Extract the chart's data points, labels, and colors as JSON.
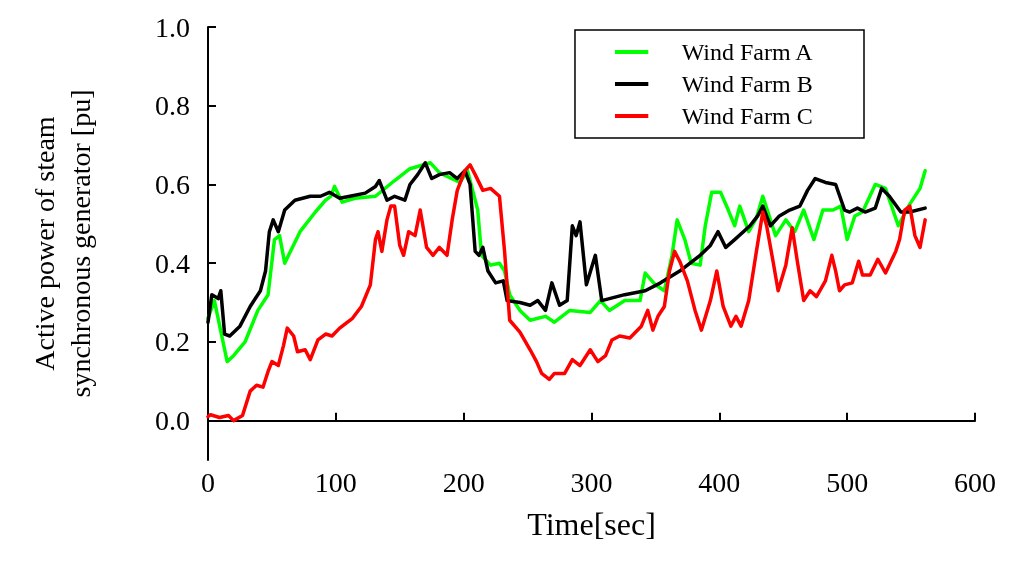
{
  "chart_data": {
    "type": "line",
    "xlabel": "Time[sec]",
    "ylabel": "Active power of steam\nsynchronous generator [pu]",
    "xlim": [
      0,
      600
    ],
    "xticks": [
      0,
      100,
      200,
      300,
      400,
      500,
      600
    ],
    "ylim": [
      -0.1,
      1.0
    ],
    "yticks": [
      {
        "value": 0,
        "label": "0.0"
      },
      {
        "value": 0.2,
        "label": "0.2"
      },
      {
        "value": 0.4,
        "label": "0.4"
      },
      {
        "value": 0.6,
        "label": "0.6"
      },
      {
        "value": 0.8,
        "label": "0.8"
      },
      {
        "value": 1.0,
        "label": "1.0"
      }
    ],
    "legend": "top right",
    "grid": false,
    "marker": "none",
    "line_style": "solid",
    "series": [
      {
        "name": "Wind Farm A",
        "color": "#00ff00",
        "x": [
          0,
          5,
          15,
          20,
          29,
          39,
          47,
          52,
          56,
          60,
          72,
          84,
          92,
          96,
          99,
          105,
          115,
          131,
          146,
          158,
          174,
          181,
          197,
          203,
          211,
          214,
          221,
          228,
          232,
          236,
          244,
          252,
          264,
          271,
          283,
          299,
          307,
          314,
          326,
          338,
          342,
          350,
          357,
          363,
          367,
          373,
          378,
          385,
          389,
          394,
          401,
          407,
          412,
          416,
          423,
          429,
          434,
          444,
          452,
          459,
          466,
          474,
          481,
          489,
          495,
          500,
          506,
          512,
          522,
          530,
          540,
          549,
          557,
          561
        ],
        "values": [
          0.26,
          0.305,
          0.15,
          0.165,
          0.2,
          0.28,
          0.32,
          0.46,
          0.47,
          0.4,
          0.48,
          0.53,
          0.56,
          0.57,
          0.595,
          0.555,
          0.565,
          0.57,
          0.61,
          0.64,
          0.655,
          0.63,
          0.605,
          0.635,
          0.535,
          0.42,
          0.395,
          0.4,
          0.38,
          0.32,
          0.28,
          0.255,
          0.265,
          0.25,
          0.28,
          0.275,
          0.305,
          0.28,
          0.305,
          0.305,
          0.375,
          0.345,
          0.33,
          0.42,
          0.51,
          0.46,
          0.4,
          0.395,
          0.495,
          0.58,
          0.58,
          0.535,
          0.495,
          0.545,
          0.48,
          0.515,
          0.57,
          0.47,
          0.51,
          0.48,
          0.535,
          0.46,
          0.535,
          0.535,
          0.545,
          0.46,
          0.52,
          0.53,
          0.6,
          0.59,
          0.495,
          0.55,
          0.59,
          0.635
        ]
      },
      {
        "name": "Wind Farm B",
        "color": "#000000",
        "x": [
          0,
          3,
          8,
          10,
          13,
          17,
          25,
          33,
          41,
          45,
          48,
          51,
          55,
          60,
          68,
          80,
          88,
          95,
          103,
          111,
          123,
          131,
          134,
          140,
          146,
          154,
          158,
          164,
          170,
          175,
          181,
          189,
          195,
          201,
          205,
          209,
          212,
          215,
          219,
          225,
          231,
          234,
          244,
          252,
          258,
          264,
          269,
          275,
          281,
          285,
          288,
          291,
          296,
          303,
          308,
          314,
          326,
          342,
          354,
          369,
          385,
          393,
          399,
          405,
          412,
          424,
          430,
          434,
          440,
          447,
          455,
          463,
          469,
          475,
          483,
          491,
          498,
          502,
          508,
          514,
          522,
          527,
          533,
          542,
          549,
          561
        ],
        "values": [
          0.25,
          0.32,
          0.31,
          0.33,
          0.22,
          0.215,
          0.24,
          0.29,
          0.33,
          0.38,
          0.48,
          0.51,
          0.48,
          0.535,
          0.56,
          0.57,
          0.57,
          0.58,
          0.565,
          0.57,
          0.578,
          0.595,
          0.61,
          0.56,
          0.57,
          0.56,
          0.6,
          0.625,
          0.655,
          0.615,
          0.625,
          0.63,
          0.615,
          0.635,
          0.6,
          0.43,
          0.42,
          0.44,
          0.38,
          0.35,
          0.355,
          0.305,
          0.3,
          0.293,
          0.305,
          0.28,
          0.35,
          0.293,
          0.305,
          0.495,
          0.47,
          0.505,
          0.345,
          0.42,
          0.305,
          0.31,
          0.32,
          0.33,
          0.35,
          0.38,
          0.42,
          0.445,
          0.48,
          0.44,
          0.46,
          0.495,
          0.52,
          0.545,
          0.495,
          0.52,
          0.535,
          0.545,
          0.585,
          0.615,
          0.605,
          0.6,
          0.535,
          0.53,
          0.54,
          0.53,
          0.54,
          0.59,
          0.57,
          0.53,
          0.53,
          0.54
        ]
      },
      {
        "name": "Wind Farm C",
        "color": "#ff0000",
        "x": [
          0,
          2,
          9,
          16,
          20,
          27,
          33,
          38,
          43,
          47,
          50,
          55,
          59,
          62,
          67,
          70,
          76,
          80,
          86,
          92,
          97,
          103,
          113,
          120,
          127,
          131,
          133,
          136,
          140,
          143,
          146,
          150,
          153,
          157,
          162,
          166,
          171,
          176,
          181,
          187,
          191,
          195,
          201,
          205,
          209,
          215,
          221,
          228,
          232,
          236,
          244,
          252,
          257,
          261,
          267,
          271,
          279,
          285,
          291,
          299,
          305,
          311,
          316,
          322,
          330,
          339,
          344,
          348,
          352,
          357,
          361,
          365,
          369,
          375,
          381,
          386,
          393,
          398,
          403,
          409,
          413,
          417,
          423,
          429,
          434,
          437,
          442,
          446,
          452,
          457,
          461,
          466,
          471,
          476,
          483,
          488,
          491,
          494,
          498,
          504,
          509,
          512,
          518,
          524,
          530,
          538,
          541,
          545,
          549,
          553,
          557,
          561
        ],
        "values": [
          0.01,
          0.015,
          0.008,
          0.013,
          0.0,
          0.013,
          0.075,
          0.09,
          0.085,
          0.125,
          0.15,
          0.14,
          0.19,
          0.235,
          0.215,
          0.175,
          0.18,
          0.155,
          0.205,
          0.22,
          0.215,
          0.235,
          0.26,
          0.29,
          0.345,
          0.46,
          0.48,
          0.43,
          0.51,
          0.545,
          0.545,
          0.445,
          0.42,
          0.48,
          0.47,
          0.535,
          0.44,
          0.42,
          0.44,
          0.42,
          0.51,
          0.585,
          0.635,
          0.65,
          0.625,
          0.585,
          0.59,
          0.57,
          0.43,
          0.255,
          0.225,
          0.18,
          0.15,
          0.12,
          0.105,
          0.12,
          0.12,
          0.155,
          0.14,
          0.18,
          0.15,
          0.165,
          0.205,
          0.215,
          0.21,
          0.24,
          0.28,
          0.23,
          0.265,
          0.29,
          0.38,
          0.43,
          0.405,
          0.355,
          0.28,
          0.23,
          0.305,
          0.38,
          0.29,
          0.24,
          0.265,
          0.24,
          0.305,
          0.43,
          0.53,
          0.495,
          0.405,
          0.33,
          0.395,
          0.49,
          0.405,
          0.305,
          0.33,
          0.315,
          0.355,
          0.42,
          0.38,
          0.33,
          0.345,
          0.35,
          0.405,
          0.37,
          0.37,
          0.41,
          0.375,
          0.43,
          0.46,
          0.535,
          0.545,
          0.47,
          0.44,
          0.51
        ]
      }
    ]
  }
}
